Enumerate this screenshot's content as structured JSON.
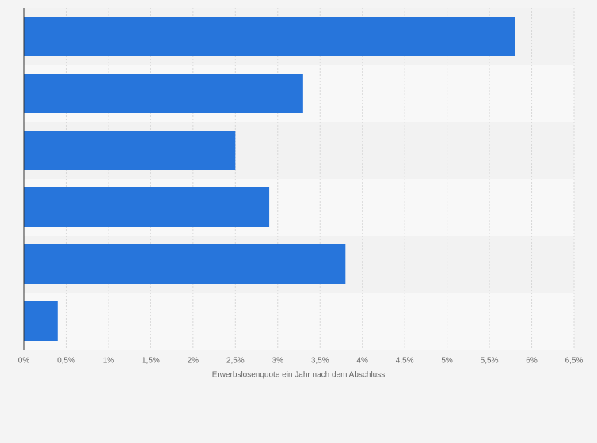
{
  "chart_data": {
    "type": "hbar",
    "x_label": "Erwerbslosenquote ein Jahr nach dem Abschluss",
    "categories": [
      null,
      null,
      null,
      null,
      null,
      null
    ],
    "values": [
      5.8,
      3.3,
      2.5,
      2.9,
      3.8,
      0.4
    ],
    "color": "#2775db",
    "xlim": [
      0,
      6.5
    ],
    "xticks": [
      {
        "value": 0,
        "label": "0%"
      },
      {
        "value": 0.5,
        "label": "0,5%"
      },
      {
        "value": 1,
        "label": "1%"
      },
      {
        "value": 1.5,
        "label": "1,5%"
      },
      {
        "value": 2,
        "label": "2%"
      },
      {
        "value": 2.5,
        "label": "2,5%"
      },
      {
        "value": 3,
        "label": "3%"
      },
      {
        "value": 3.5,
        "label": "3,5%"
      },
      {
        "value": 4,
        "label": "4%"
      },
      {
        "value": 4.5,
        "label": "4,5%"
      },
      {
        "value": 5,
        "label": "5%"
      },
      {
        "value": 5.5,
        "label": "5,5%"
      },
      {
        "value": 6,
        "label": "6%"
      },
      {
        "value": 6.5,
        "label": "6,5%"
      }
    ],
    "grid": true
  }
}
